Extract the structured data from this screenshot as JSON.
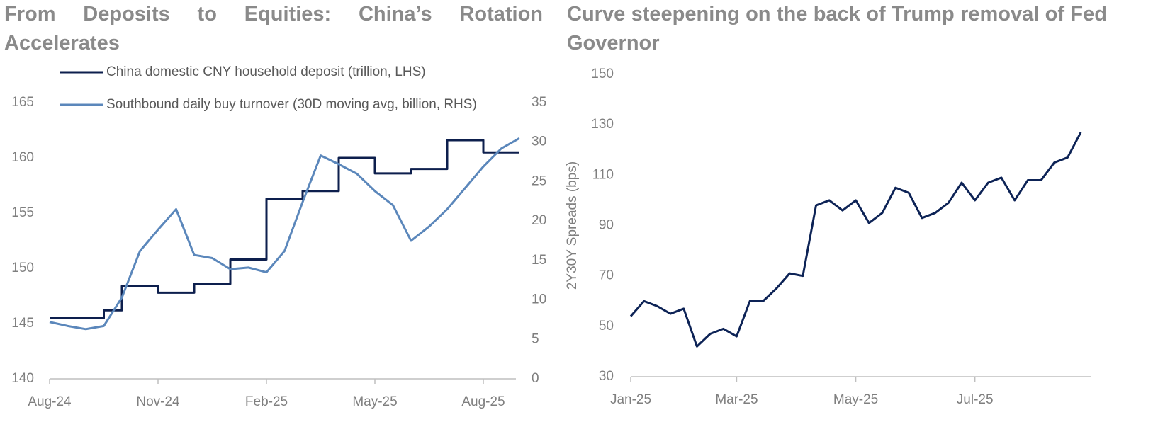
{
  "chart_data": [
    {
      "type": "line",
      "title": "From Deposits to Equities: China’s Rotation Accelerates",
      "categories": [
        "Aug-24",
        null,
        null,
        null,
        null,
        null,
        "Nov-24",
        null,
        null,
        null,
        null,
        null,
        "Feb-25",
        null,
        null,
        null,
        null,
        null,
        "May-25",
        null,
        null,
        null,
        null,
        null,
        "Aug-25",
        null,
        null
      ],
      "series": [
        {
          "name": "China domestic CNY household deposit (trillion, LHS)",
          "color": "#0d1f4d",
          "step": "post",
          "values": [
            145.5,
            145.5,
            145.5,
            146.2,
            148.4,
            148.4,
            147.8,
            147.8,
            148.6,
            148.6,
            150.8,
            150.8,
            156.3,
            156.3,
            157,
            157,
            160,
            160,
            158.6,
            158.6,
            159,
            159,
            161.6,
            161.6,
            160.5,
            160.5,
            160.5
          ]
        },
        {
          "name": "Southbound daily buy turnover (30D moving avg, billion, RHS)",
          "color": "#5b87bb",
          "axis": "y2",
          "values": [
            7.2,
            6.7,
            6.3,
            6.7,
            10.3,
            16.2,
            18.9,
            21.5,
            15.7,
            15.3,
            13.9,
            14.1,
            13.5,
            16.2,
            22.4,
            28.3,
            27.2,
            26,
            23.8,
            22,
            17.5,
            19.3,
            21.5,
            24.2,
            26.9,
            29.2,
            30.5
          ]
        }
      ],
      "ylim": [
        140,
        165
      ],
      "yticks": [
        140,
        145,
        150,
        155,
        160,
        165
      ],
      "y2lim": [
        0,
        35
      ],
      "y2ticks": [
        0,
        5,
        10,
        15,
        20,
        25,
        30,
        35
      ],
      "legend": "top"
    },
    {
      "type": "line",
      "title": "Curve steepening on the back of Trump removal of Fed Governor",
      "ylabel": "2Y30Y Spreads (bps)",
      "categories": [
        "Jan-25",
        null,
        null,
        null,
        null,
        null,
        null,
        null,
        "Mar-25",
        null,
        null,
        null,
        null,
        null,
        null,
        null,
        null,
        "May-25",
        null,
        null,
        null,
        null,
        null,
        null,
        null,
        null,
        "Jul-25",
        null,
        null,
        null,
        null,
        null,
        null,
        null,
        null
      ],
      "series": [
        {
          "name": null,
          "color": "#0d2356",
          "values": [
            54,
            60,
            58,
            55,
            57,
            42,
            47,
            49,
            46,
            60,
            60,
            65,
            71,
            70,
            98,
            100,
            96,
            100,
            91,
            95,
            105,
            103,
            93,
            95,
            99,
            107,
            100,
            107,
            109,
            100,
            108,
            108,
            115,
            117,
            127
          ]
        }
      ],
      "ylim": [
        30,
        150
      ],
      "yticks": [
        30,
        50,
        70,
        90,
        110,
        130,
        150
      ]
    }
  ]
}
